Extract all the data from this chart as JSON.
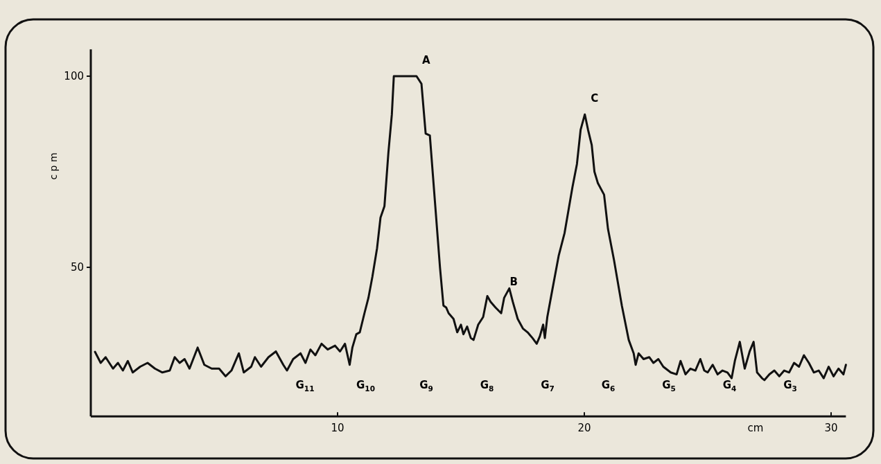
{
  "chart_data": {
    "type": "line",
    "xlabel": "cm",
    "ylabel": "c p m",
    "xlim": [
      0,
      30.6
    ],
    "ylim": [
      11,
      107
    ],
    "xticks": [
      10,
      20,
      30
    ],
    "yticks": [
      50,
      100
    ],
    "grid": false,
    "marker": "none",
    "line_style": "solid",
    "series": [
      {
        "color": "#111111",
        "x": [
          0.17,
          0.4,
          0.6,
          0.9,
          1.1,
          1.3,
          1.5,
          1.7,
          2.0,
          2.3,
          2.6,
          2.9,
          3.2,
          3.4,
          3.6,
          3.8,
          4.0,
          4.33,
          4.6,
          4.9,
          5.2,
          5.46,
          5.7,
          6.0,
          6.2,
          6.5,
          6.65,
          6.9,
          7.2,
          7.5,
          7.8,
          7.95,
          8.2,
          8.5,
          8.7,
          8.9,
          9.1,
          9.35,
          9.6,
          9.9,
          10.1,
          10.3,
          10.49,
          10.6,
          10.76,
          10.9,
          11.09,
          11.25,
          11.41,
          11.6,
          11.74,
          11.9,
          12.06,
          12.2,
          12.28,
          13.2,
          13.4,
          13.57,
          13.74,
          13.96,
          14.15,
          14.29,
          14.4,
          14.5,
          14.7,
          14.85,
          15.0,
          15.1,
          15.25,
          15.4,
          15.51,
          15.7,
          15.9,
          16.07,
          16.2,
          16.4,
          16.63,
          16.75,
          16.96,
          17.1,
          17.3,
          17.51,
          17.7,
          17.9,
          18.07,
          18.2,
          18.33,
          18.4,
          18.5,
          18.7,
          18.96,
          19.2,
          19.52,
          19.7,
          19.85,
          20.02,
          20.15,
          20.3,
          20.41,
          20.55,
          20.8,
          20.96,
          21.2,
          21.52,
          21.8,
          22.0,
          22.08,
          22.2,
          22.4,
          22.63,
          22.8,
          23.0,
          23.2,
          23.5,
          23.74,
          23.9,
          24.1,
          24.3,
          24.5,
          24.7,
          24.86,
          25.0,
          25.2,
          25.4,
          25.6,
          25.8,
          25.97,
          26.1,
          26.3,
          26.5,
          26.7,
          26.86,
          27.0,
          27.2,
          27.3,
          27.5,
          27.7,
          27.9,
          28.1,
          28.3,
          28.5,
          28.7,
          28.9,
          29.1,
          29.3,
          29.5,
          29.7,
          29.9,
          30.1,
          30.3,
          30.5,
          30.6
        ],
        "values": [
          27.9,
          25,
          26.5,
          23.5,
          25,
          23,
          25.5,
          22.5,
          24,
          25,
          23.5,
          22.5,
          23,
          26.5,
          25,
          26,
          23.5,
          29,
          24.5,
          23.5,
          23.5,
          21.5,
          23,
          27.5,
          22.5,
          24,
          26.5,
          24,
          26.5,
          28,
          24.5,
          23,
          26,
          27.5,
          25,
          28.5,
          27,
          30,
          28.5,
          29.5,
          28,
          30,
          24.5,
          29,
          32.5,
          33,
          38,
          42,
          47.5,
          55,
          63,
          66,
          80,
          90,
          100,
          100,
          98,
          85,
          84.5,
          66,
          50,
          40,
          39.5,
          38,
          36.5,
          33,
          35,
          32.5,
          34.5,
          31.5,
          31,
          35,
          37,
          42.5,
          41,
          39.5,
          38,
          42,
          44.5,
          41,
          36.5,
          34,
          33,
          31.5,
          30,
          32,
          35,
          31.5,
          37,
          44,
          53,
          59,
          71,
          77,
          86,
          90,
          86,
          82,
          75,
          72,
          69,
          60,
          52,
          40,
          31,
          27.5,
          24.5,
          27.5,
          26,
          26.5,
          25,
          26,
          24,
          22.5,
          22,
          25.5,
          22,
          23.5,
          23,
          26,
          23,
          22.5,
          24.5,
          22,
          23,
          22.5,
          21,
          25.5,
          30.5,
          23.5,
          28,
          30.5,
          22.5,
          21,
          20.5,
          22,
          23,
          21.5,
          23,
          22.5,
          25,
          24,
          27,
          25,
          22.5,
          23,
          21,
          24,
          21.5,
          23.5,
          22,
          24.5
        ]
      }
    ],
    "annotations": [
      {
        "text": "A",
        "x": 13.2,
        "y": 100
      },
      {
        "text": "B",
        "x": 16.75,
        "y": 42
      },
      {
        "text": "C",
        "x": 20.02,
        "y": 90
      },
      "G$_{11}$",
      "G$_{10}$",
      "G$_{9}$",
      "G$_{8}$",
      "G$_{7}$",
      "G$_{6}$",
      "G$_{5}$",
      "G$_{4}$",
      "G$_{3}$"
    ]
  }
}
